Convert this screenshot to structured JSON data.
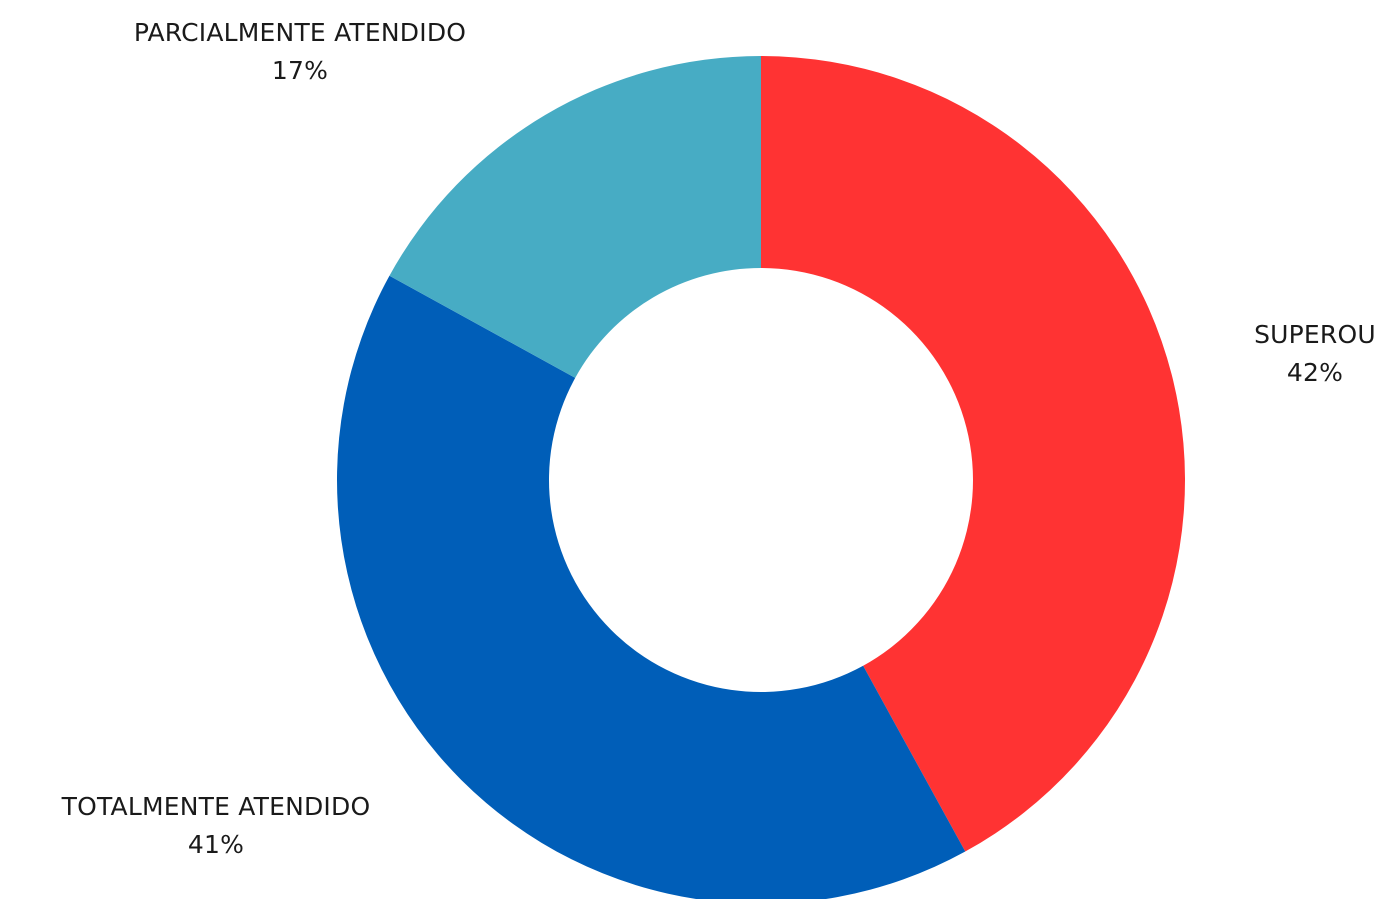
{
  "chart_data": {
    "type": "pie",
    "variant": "donut",
    "title": "",
    "slices": [
      {
        "label": "SUPEROU",
        "value": 42,
        "value_label": "42%",
        "color": "#ff3333"
      },
      {
        "label": "TOTALMENTE ATENDIDO",
        "value": 41,
        "value_label": "41%",
        "color": "#005eb8"
      },
      {
        "label": "PARCIALMENTE ATENDIDO",
        "value": 17,
        "value_label": "17%",
        "color": "#47acc4"
      }
    ],
    "legend": "none"
  }
}
